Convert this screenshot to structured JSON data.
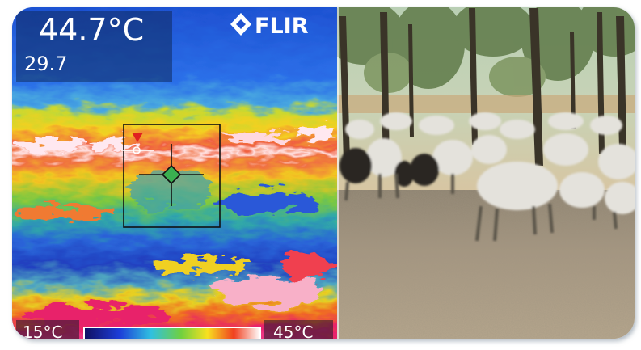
{
  "thermal": {
    "temperature": "44.7°C",
    "secondary_reading": "29.7",
    "brand": "FLIR",
    "scale_min": "15°C",
    "scale_max": "45°C"
  }
}
